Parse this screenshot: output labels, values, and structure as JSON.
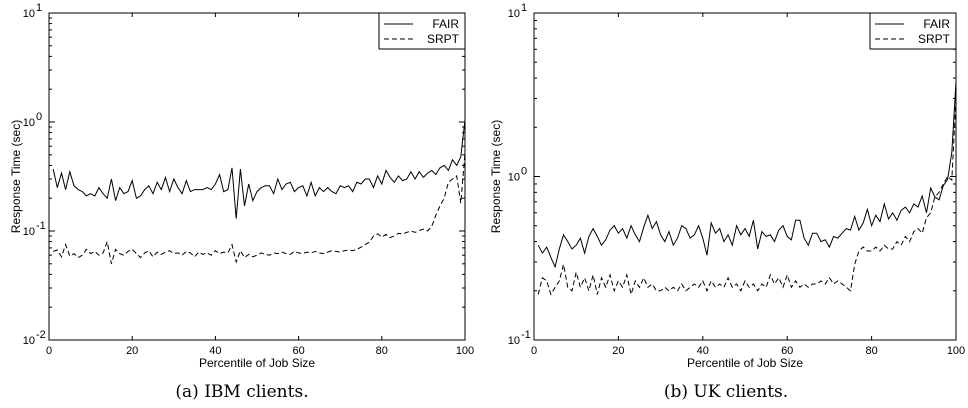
{
  "chart_data": [
    {
      "type": "line",
      "caption": "(a) IBM clients.",
      "xlabel": "Percentile of Job Size",
      "ylabel": "Response Time (sec)",
      "xlim": [
        0,
        100
      ],
      "ylim": [
        0.01,
        10
      ],
      "yscale": "log",
      "x_ticks": [
        "0",
        "20",
        "40",
        "60",
        "80",
        "100"
      ],
      "y_ticks": [
        {
          "base": "10",
          "exp": "-2",
          "value": 0.01
        },
        {
          "base": "10",
          "exp": "-1",
          "value": 0.1
        },
        {
          "base": "10",
          "exp": "0",
          "value": 1
        },
        {
          "base": "10",
          "exp": "1",
          "value": 10
        }
      ],
      "legend_position": "top-right",
      "x": [
        1,
        2,
        3,
        4,
        5,
        6,
        7,
        8,
        9,
        10,
        11,
        12,
        13,
        14,
        15,
        16,
        17,
        18,
        19,
        20,
        21,
        22,
        23,
        24,
        25,
        26,
        27,
        28,
        29,
        30,
        31,
        32,
        33,
        34,
        35,
        36,
        37,
        38,
        39,
        40,
        41,
        42,
        43,
        44,
        45,
        46,
        47,
        48,
        49,
        50,
        51,
        52,
        53,
        54,
        55,
        56,
        57,
        58,
        59,
        60,
        61,
        62,
        63,
        64,
        65,
        66,
        67,
        68,
        69,
        70,
        71,
        72,
        73,
        74,
        75,
        76,
        77,
        78,
        79,
        80,
        81,
        82,
        83,
        84,
        85,
        86,
        87,
        88,
        89,
        90,
        91,
        92,
        93,
        94,
        95,
        96,
        97,
        98,
        99,
        100
      ],
      "series": [
        {
          "name": "FAIR",
          "style": "solid",
          "values": [
            0.37,
            0.25,
            0.34,
            0.24,
            0.35,
            0.26,
            0.24,
            0.23,
            0.21,
            0.22,
            0.21,
            0.25,
            0.22,
            0.2,
            0.3,
            0.19,
            0.25,
            0.22,
            0.23,
            0.29,
            0.2,
            0.21,
            0.24,
            0.26,
            0.22,
            0.28,
            0.24,
            0.31,
            0.23,
            0.3,
            0.25,
            0.22,
            0.29,
            0.23,
            0.24,
            0.24,
            0.24,
            0.25,
            0.24,
            0.27,
            0.33,
            0.23,
            0.24,
            0.38,
            0.13,
            0.37,
            0.17,
            0.27,
            0.19,
            0.23,
            0.25,
            0.26,
            0.26,
            0.22,
            0.3,
            0.24,
            0.27,
            0.28,
            0.23,
            0.25,
            0.26,
            0.21,
            0.28,
            0.21,
            0.25,
            0.23,
            0.25,
            0.23,
            0.22,
            0.26,
            0.25,
            0.26,
            0.23,
            0.28,
            0.27,
            0.3,
            0.3,
            0.25,
            0.32,
            0.27,
            0.36,
            0.31,
            0.28,
            0.32,
            0.29,
            0.3,
            0.35,
            0.3,
            0.35,
            0.31,
            0.34,
            0.36,
            0.33,
            0.38,
            0.4,
            0.36,
            0.45,
            0.4,
            0.48,
            1.05
          ]
        },
        {
          "name": "SRPT",
          "style": "dashed",
          "values": [
            0.065,
            0.067,
            0.058,
            0.075,
            0.059,
            0.062,
            0.057,
            0.06,
            0.068,
            0.062,
            0.065,
            0.06,
            0.063,
            0.08,
            0.05,
            0.068,
            0.062,
            0.06,
            0.065,
            0.068,
            0.062,
            0.057,
            0.063,
            0.066,
            0.058,
            0.064,
            0.061,
            0.064,
            0.066,
            0.062,
            0.063,
            0.06,
            0.065,
            0.063,
            0.058,
            0.064,
            0.061,
            0.063,
            0.06,
            0.066,
            0.062,
            0.064,
            0.063,
            0.075,
            0.052,
            0.066,
            0.057,
            0.061,
            0.058,
            0.06,
            0.063,
            0.061,
            0.06,
            0.063,
            0.062,
            0.064,
            0.062,
            0.061,
            0.065,
            0.063,
            0.062,
            0.064,
            0.063,
            0.065,
            0.063,
            0.062,
            0.064,
            0.066,
            0.065,
            0.064,
            0.066,
            0.067,
            0.066,
            0.068,
            0.071,
            0.075,
            0.079,
            0.09,
            0.094,
            0.088,
            0.093,
            0.087,
            0.09,
            0.095,
            0.094,
            0.097,
            0.1,
            0.097,
            0.101,
            0.104,
            0.1,
            0.11,
            0.14,
            0.17,
            0.2,
            0.28,
            0.3,
            0.32,
            0.18,
            0.52
          ]
        }
      ]
    },
    {
      "type": "line",
      "caption": "(b) UK clients.",
      "xlabel": "Percentile of Job Size",
      "ylabel": "Response Time (sec)",
      "xlim": [
        0,
        100
      ],
      "ylim": [
        0.1,
        10
      ],
      "yscale": "log",
      "x_ticks": [
        "0",
        "20",
        "40",
        "60",
        "80",
        "100"
      ],
      "y_ticks": [
        {
          "base": "10",
          "exp": "-1",
          "value": 0.1
        },
        {
          "base": "10",
          "exp": "0",
          "value": 1
        },
        {
          "base": "10",
          "exp": "1",
          "value": 10
        }
      ],
      "legend_position": "top-right",
      "x": [
        1,
        2,
        3,
        4,
        5,
        6,
        7,
        8,
        9,
        10,
        11,
        12,
        13,
        14,
        15,
        16,
        17,
        18,
        19,
        20,
        21,
        22,
        23,
        24,
        25,
        26,
        27,
        28,
        29,
        30,
        31,
        32,
        33,
        34,
        35,
        36,
        37,
        38,
        39,
        40,
        41,
        42,
        43,
        44,
        45,
        46,
        47,
        48,
        49,
        50,
        51,
        52,
        53,
        54,
        55,
        56,
        57,
        58,
        59,
        60,
        61,
        62,
        63,
        64,
        65,
        66,
        67,
        68,
        69,
        70,
        71,
        72,
        73,
        74,
        75,
        76,
        77,
        78,
        79,
        80,
        81,
        82,
        83,
        84,
        85,
        86,
        87,
        88,
        89,
        90,
        91,
        92,
        93,
        94,
        95,
        96,
        97,
        98,
        99,
        100
      ],
      "series": [
        {
          "name": "FAIR",
          "style": "solid",
          "values": [
            0.38,
            0.34,
            0.37,
            0.32,
            0.28,
            0.36,
            0.44,
            0.4,
            0.36,
            0.38,
            0.42,
            0.34,
            0.43,
            0.48,
            0.43,
            0.38,
            0.41,
            0.47,
            0.5,
            0.45,
            0.48,
            0.42,
            0.5,
            0.44,
            0.4,
            0.49,
            0.58,
            0.48,
            0.53,
            0.44,
            0.4,
            0.46,
            0.38,
            0.42,
            0.5,
            0.48,
            0.42,
            0.44,
            0.5,
            0.42,
            0.33,
            0.52,
            0.45,
            0.48,
            0.4,
            0.44,
            0.38,
            0.5,
            0.44,
            0.48,
            0.43,
            0.54,
            0.36,
            0.46,
            0.43,
            0.44,
            0.4,
            0.47,
            0.5,
            0.43,
            0.41,
            0.54,
            0.54,
            0.42,
            0.38,
            0.45,
            0.45,
            0.4,
            0.41,
            0.37,
            0.43,
            0.42,
            0.45,
            0.48,
            0.47,
            0.57,
            0.47,
            0.52,
            0.63,
            0.5,
            0.58,
            0.53,
            0.68,
            0.55,
            0.6,
            0.54,
            0.62,
            0.65,
            0.6,
            0.68,
            0.65,
            0.76,
            0.6,
            0.85,
            0.75,
            0.72,
            0.88,
            0.96,
            1.4,
            3.8
          ]
        },
        {
          "name": "SRPT",
          "style": "dashed",
          "values": [
            0.19,
            0.24,
            0.23,
            0.19,
            0.21,
            0.23,
            0.29,
            0.21,
            0.2,
            0.26,
            0.21,
            0.24,
            0.2,
            0.25,
            0.19,
            0.24,
            0.21,
            0.25,
            0.2,
            0.23,
            0.21,
            0.25,
            0.19,
            0.23,
            0.21,
            0.24,
            0.21,
            0.22,
            0.2,
            0.2,
            0.21,
            0.2,
            0.21,
            0.2,
            0.22,
            0.2,
            0.21,
            0.22,
            0.21,
            0.23,
            0.2,
            0.23,
            0.21,
            0.22,
            0.21,
            0.24,
            0.21,
            0.22,
            0.2,
            0.23,
            0.21,
            0.22,
            0.2,
            0.22,
            0.21,
            0.25,
            0.22,
            0.24,
            0.21,
            0.25,
            0.21,
            0.23,
            0.21,
            0.22,
            0.21,
            0.22,
            0.22,
            0.23,
            0.22,
            0.24,
            0.22,
            0.23,
            0.22,
            0.21,
            0.2,
            0.29,
            0.35,
            0.37,
            0.35,
            0.35,
            0.37,
            0.35,
            0.38,
            0.36,
            0.36,
            0.4,
            0.38,
            0.43,
            0.4,
            0.46,
            0.48,
            0.45,
            0.56,
            0.6,
            0.75,
            0.8,
            0.9,
            1.0,
            0.95,
            3.0
          ]
        }
      ]
    }
  ]
}
